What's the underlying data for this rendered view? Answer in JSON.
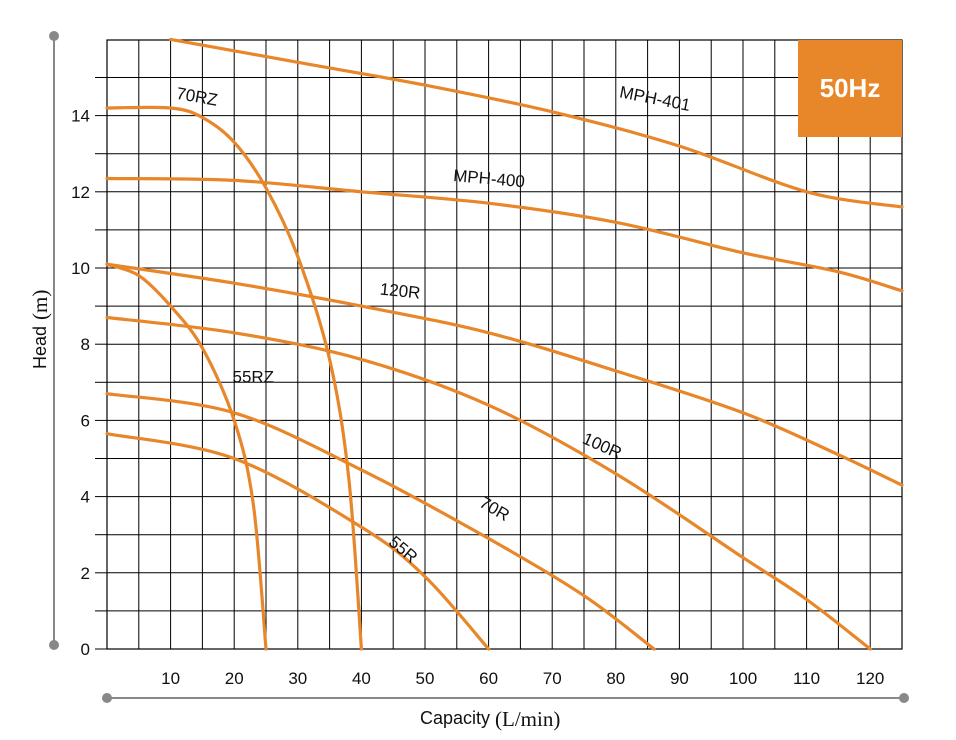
{
  "chart_data": {
    "type": "line",
    "title": "",
    "badge": "50Hz",
    "xlabel": "Capacity",
    "xunit": "(L/min)",
    "ylabel": "Head",
    "yunit": "(m)",
    "xlim": [
      0,
      125
    ],
    "ylim": [
      0,
      16
    ],
    "xticks": [
      10,
      20,
      30,
      40,
      50,
      60,
      70,
      80,
      90,
      100,
      110,
      120
    ],
    "yticks": [
      0,
      2,
      4,
      6,
      8,
      10,
      12,
      14
    ],
    "grid": true,
    "colors": {
      "curve": "#e8862a",
      "badge": "#e8862a",
      "grid": "#000000",
      "axis_line": "#888888"
    },
    "series": [
      {
        "name": "MPH-401",
        "x": [
          10,
          30,
          50,
          70,
          90,
          110,
          125
        ],
        "y": [
          16.0,
          15.4,
          14.8,
          14.1,
          13.2,
          12.0,
          11.6
        ]
      },
      {
        "name": "MPH-400",
        "x": [
          0,
          20,
          40,
          60,
          80,
          100,
          115,
          125
        ],
        "y": [
          12.35,
          12.3,
          12.0,
          11.7,
          11.2,
          10.4,
          9.9,
          9.4
        ]
      },
      {
        "name": "70RZ",
        "x": [
          0,
          10,
          15,
          20,
          25,
          30,
          35,
          38,
          40
        ],
        "y": [
          14.2,
          14.2,
          13.95,
          13.3,
          12.1,
          10.3,
          7.6,
          4.5,
          0
        ]
      },
      {
        "name": "55RZ",
        "x": [
          0,
          5,
          10,
          15,
          20,
          23,
          25
        ],
        "y": [
          10.1,
          9.8,
          9.0,
          7.9,
          6.0,
          3.8,
          0
        ]
      },
      {
        "name": "120R",
        "x": [
          0,
          20,
          40,
          60,
          80,
          100,
          115,
          125
        ],
        "y": [
          10.1,
          9.6,
          9.0,
          8.3,
          7.3,
          6.2,
          5.1,
          4.3
        ]
      },
      {
        "name": "100R",
        "x": [
          0,
          20,
          40,
          60,
          80,
          100,
          110,
          120
        ],
        "y": [
          8.7,
          8.3,
          7.6,
          6.4,
          4.6,
          2.4,
          1.3,
          0
        ]
      },
      {
        "name": "70R",
        "x": [
          0,
          20,
          40,
          60,
          75,
          86
        ],
        "y": [
          6.7,
          6.2,
          4.7,
          2.9,
          1.4,
          0
        ]
      },
      {
        "name": "55R",
        "x": [
          0,
          20,
          40,
          50,
          60
        ],
        "y": [
          5.65,
          5.0,
          3.2,
          1.9,
          0
        ]
      }
    ],
    "curve_labels": [
      {
        "series": "MPH-401",
        "text": "MPH-401",
        "x": 86,
        "y": 14.3,
        "angle": 11
      },
      {
        "series": "MPH-400",
        "text": "MPH-400",
        "x": 60,
        "y": 12.2,
        "angle": 5
      },
      {
        "series": "70RZ",
        "text": "70RZ",
        "x": 14,
        "y": 14.35,
        "angle": 10
      },
      {
        "series": "55RZ",
        "text": "55RZ",
        "x": 23,
        "y": 7.0,
        "angle": 0
      },
      {
        "series": "120R",
        "text": "120R",
        "x": 46,
        "y": 9.25,
        "angle": 6
      },
      {
        "series": "100R",
        "text": "100R",
        "x": 77.5,
        "y": 5.2,
        "angle": 24
      },
      {
        "series": "70R",
        "text": "70R",
        "x": 60.5,
        "y": 3.55,
        "angle": 30
      },
      {
        "series": "55R",
        "text": "55R",
        "x": 46,
        "y": 2.5,
        "angle": 40
      }
    ]
  }
}
